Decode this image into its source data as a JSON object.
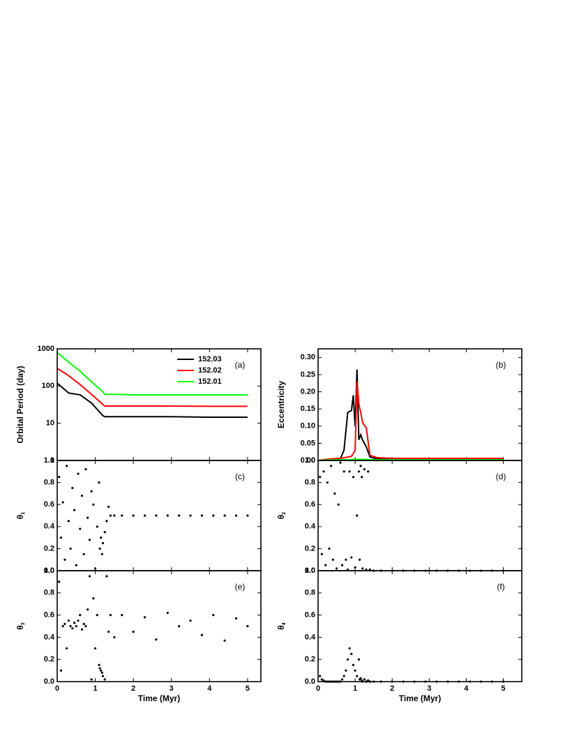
{
  "chart_data": [
    {
      "type": "line",
      "annotation": "(a)",
      "ylabel": "Orbital Period (day)",
      "ylog": true,
      "xlim": [
        0,
        5.35
      ],
      "xticks": [
        0,
        1,
        2,
        3,
        4,
        5
      ],
      "ylim": [
        1,
        1000
      ],
      "yticks": [
        1,
        10,
        100,
        1000
      ],
      "legend": "upper right",
      "x": [
        0,
        0.3,
        0.6,
        0.9,
        1.2,
        1.25,
        1.5,
        2,
        3,
        4,
        5
      ],
      "series": [
        {
          "name": "152.03",
          "color": "#000000",
          "values": [
            120,
            65,
            58,
            35,
            16,
            15,
            15,
            15,
            15,
            14.5,
            14.5
          ]
        },
        {
          "name": "152.02",
          "color": "#ff0000",
          "values": [
            300,
            190,
            110,
            60,
            32,
            29,
            29,
            29,
            29,
            28.5,
            28.5
          ]
        },
        {
          "name": "152.01",
          "color": "#00ff00",
          "values": [
            800,
            440,
            250,
            130,
            70,
            60,
            60,
            58,
            58,
            58,
            58
          ]
        }
      ]
    },
    {
      "type": "line",
      "annotation": "(b)",
      "ylabel": "Eccentricity",
      "xlim": [
        0,
        5.5
      ],
      "xticks": [
        0,
        1,
        2,
        3,
        4,
        5
      ],
      "ylim": [
        0,
        0.325
      ],
      "yticks": [
        {
          "value": 0,
          "label": "0.00"
        },
        {
          "value": 0.05,
          "label": "0.05"
        },
        {
          "value": 0.1,
          "label": "0.10"
        },
        {
          "value": 0.15,
          "label": "0.15"
        },
        {
          "value": 0.2,
          "label": "0.20"
        },
        {
          "value": 0.25,
          "label": "0.25"
        },
        {
          "value": 0.3,
          "label": "0.30"
        }
      ],
      "x": [
        0,
        0.2,
        0.4,
        0.6,
        0.7,
        0.8,
        0.9,
        0.95,
        1.0,
        1.05,
        1.1,
        1.15,
        1.2,
        1.3,
        1.4,
        1.6,
        2,
        3,
        4,
        5
      ],
      "series": [
        {
          "color": "#000000",
          "values": [
            0,
            0.002,
            0.003,
            0.005,
            0.03,
            0.14,
            0.145,
            0.19,
            0.1,
            0.265,
            0.06,
            0.075,
            0.06,
            0.04,
            0.01,
            0.004,
            0.004,
            0.004,
            0.004,
            0.004
          ]
        },
        {
          "color": "#ff0000",
          "values": [
            0,
            0.003,
            0.005,
            0.006,
            0.008,
            0.01,
            0.012,
            0.02,
            0.03,
            0.23,
            0.165,
            0.14,
            0.11,
            0.095,
            0.015,
            0.008,
            0.006,
            0.006,
            0.006,
            0.006
          ]
        },
        {
          "color": "#00ff00",
          "values": [
            0,
            0.001,
            0.002,
            0.002,
            0.002,
            0.002,
            0.002,
            0.003,
            0.003,
            0.003,
            0.003,
            0.003,
            0.003,
            0.003,
            0.002,
            0.002,
            0.002,
            0.002,
            0.002,
            0.002
          ]
        }
      ]
    },
    {
      "type": "scatter",
      "annotation": "(c)",
      "ylabel": "θ",
      "ylabel_sub": "1",
      "color": "#000000",
      "xlim": [
        0,
        5.35
      ],
      "xticks": [
        0,
        1,
        2,
        3,
        4,
        5
      ],
      "ylim": [
        0,
        1
      ],
      "yticks": [
        {
          "value": 0,
          "label": "0.0"
        },
        {
          "value": 0.2,
          "label": "0.2"
        },
        {
          "value": 0.4,
          "label": "0.4"
        },
        {
          "value": 0.6,
          "label": "0.6"
        },
        {
          "value": 0.8,
          "label": "0.8"
        },
        {
          "value": 1,
          "label": "1.0"
        }
      ],
      "x": [
        0.05,
        0.1,
        0.15,
        0.2,
        0.25,
        0.3,
        0.35,
        0.4,
        0.45,
        0.5,
        0.55,
        0.6,
        0.65,
        0.7,
        0.75,
        0.8,
        0.85,
        0.9,
        0.95,
        1.0,
        1.05,
        1.1,
        1.12,
        1.15,
        1.18,
        1.2,
        1.25,
        1.3,
        1.35,
        1.4,
        1.5,
        1.7,
        2.0,
        2.3,
        2.6,
        2.9,
        3.2,
        3.5,
        3.8,
        4.1,
        4.4,
        4.7,
        5.0
      ],
      "values": [
        0.85,
        0.3,
        0.62,
        0.1,
        0.95,
        0.45,
        0.2,
        0.75,
        0.55,
        0.05,
        0.88,
        0.38,
        0.68,
        0.15,
        0.92,
        0.48,
        0.28,
        0.72,
        0.6,
        0.02,
        0.4,
        0.8,
        0.2,
        0.3,
        0.15,
        0.25,
        0.35,
        0.45,
        0.58,
        0.5,
        0.5,
        0.5,
        0.5,
        0.5,
        0.5,
        0.5,
        0.5,
        0.5,
        0.5,
        0.5,
        0.5,
        0.5,
        0.5
      ]
    },
    {
      "type": "scatter",
      "annotation": "(d)",
      "ylabel": "θ",
      "ylabel_sub": "2",
      "color": "#000000",
      "xlim": [
        0,
        5.5
      ],
      "xticks": [
        0,
        1,
        2,
        3,
        4,
        5
      ],
      "ylim": [
        0,
        1
      ],
      "yticks": [
        {
          "value": 0,
          "label": "0.0"
        },
        {
          "value": 0.2,
          "label": "0.2"
        },
        {
          "value": 0.4,
          "label": "0.4"
        },
        {
          "value": 0.6,
          "label": "0.6"
        },
        {
          "value": 0.8,
          "label": "0.8"
        },
        {
          "value": 1,
          "label": "1.0"
        }
      ],
      "x": [
        0.05,
        0.1,
        0.15,
        0.2,
        0.25,
        0.3,
        0.35,
        0.4,
        0.45,
        0.5,
        0.55,
        0.6,
        0.65,
        0.7,
        0.75,
        0.8,
        0.85,
        0.9,
        0.95,
        1.0,
        1.05,
        1.1,
        1.12,
        1.15,
        1.18,
        1.2,
        1.25,
        1.3,
        1.35,
        1.4,
        1.5,
        1.7,
        2.0,
        2.3,
        2.6,
        2.9,
        3.2,
        3.5,
        3.8,
        4.1,
        4.4,
        4.7,
        5.0
      ],
      "values": [
        0.85,
        0.15,
        0.9,
        0.05,
        0.8,
        0.2,
        0.95,
        0.1,
        0.7,
        0.02,
        0.6,
        0.98,
        0.05,
        0.9,
        0.1,
        0.01,
        0.9,
        0.12,
        0.85,
        0.03,
        0.5,
        0.9,
        0.1,
        0.95,
        0.85,
        0.02,
        0.92,
        0.01,
        0.9,
        0.01,
        0,
        0,
        0,
        0,
        0,
        0,
        0,
        0,
        0,
        0,
        0,
        0,
        0
      ]
    },
    {
      "type": "scatter",
      "annotation": "(e)",
      "ylabel": "θ",
      "ylabel_sub": "3",
      "xlabel": "Time (Myr)",
      "color": "#000000",
      "xlim": [
        0,
        5.35
      ],
      "xticks": [
        0,
        1,
        2,
        3,
        4,
        5
      ],
      "ylim": [
        0,
        1
      ],
      "yticks": [
        {
          "value": 0,
          "label": "0.0"
        },
        {
          "value": 0.2,
          "label": "0.2"
        },
        {
          "value": 0.4,
          "label": "0.4"
        },
        {
          "value": 0.6,
          "label": "0.6"
        },
        {
          "value": 0.8,
          "label": "0.8"
        },
        {
          "value": 1,
          "label": "1.0"
        }
      ],
      "x": [
        0.05,
        0.1,
        0.15,
        0.2,
        0.25,
        0.3,
        0.35,
        0.4,
        0.45,
        0.5,
        0.55,
        0.6,
        0.65,
        0.7,
        0.75,
        0.8,
        0.85,
        0.9,
        0.95,
        1.0,
        1.05,
        1.1,
        1.12,
        1.15,
        1.18,
        1.2,
        1.25,
        1.3,
        1.35,
        1.4,
        1.5,
        1.7,
        2.0,
        2.3,
        2.6,
        2.9,
        3.2,
        3.5,
        3.8,
        4.1,
        4.4,
        4.7,
        5.0
      ],
      "values": [
        0.9,
        0.1,
        0.5,
        0.52,
        0.3,
        0.55,
        0.5,
        0.48,
        0.53,
        0.5,
        0.55,
        0.6,
        0.47,
        0.52,
        0.5,
        0.65,
        0.95,
        0.02,
        0.75,
        0.3,
        0.6,
        0.15,
        0.12,
        0.1,
        0.08,
        0.05,
        0.02,
        0.95,
        0.45,
        0.6,
        0.4,
        0.6,
        0.45,
        0.58,
        0.38,
        0.62,
        0.5,
        0.55,
        0.42,
        0.6,
        0.37,
        0.57,
        0.5
      ]
    },
    {
      "type": "scatter",
      "annotation": "(f)",
      "ylabel": "θ",
      "ylabel_sub": "4",
      "xlabel": "Time (Myr)",
      "color": "#000000",
      "xlim": [
        0,
        5.5
      ],
      "xticks": [
        0,
        1,
        2,
        3,
        4,
        5
      ],
      "ylim": [
        0,
        1
      ],
      "yticks": [
        {
          "value": 0,
          "label": "0.0"
        },
        {
          "value": 0.2,
          "label": "0.2"
        },
        {
          "value": 0.4,
          "label": "0.4"
        },
        {
          "value": 0.6,
          "label": "0.6"
        },
        {
          "value": 0.8,
          "label": "0.8"
        },
        {
          "value": 1,
          "label": "1.0"
        }
      ],
      "x": [
        0.05,
        0.1,
        0.15,
        0.2,
        0.25,
        0.3,
        0.35,
        0.4,
        0.45,
        0.5,
        0.55,
        0.6,
        0.65,
        0.7,
        0.75,
        0.8,
        0.85,
        0.9,
        0.95,
        1.0,
        1.05,
        1.1,
        1.12,
        1.15,
        1.18,
        1.2,
        1.25,
        1.3,
        1.35,
        1.4,
        1.5,
        1.7,
        2.0,
        2.3,
        2.6,
        2.9,
        3.2,
        3.5,
        3.8,
        4.1,
        4.4,
        4.7,
        5.0
      ],
      "values": [
        0.05,
        0.02,
        0.01,
        0,
        0,
        0,
        0,
        0,
        0,
        0,
        0,
        0,
        0.02,
        0.05,
        0.1,
        0.2,
        0.3,
        0.25,
        0.15,
        0.1,
        0.05,
        0.2,
        0.02,
        0.03,
        0.01,
        0,
        0.02,
        0,
        0.01,
        0,
        0,
        0,
        0,
        0,
        0,
        0,
        0,
        0,
        0,
        0,
        0,
        0,
        0
      ]
    }
  ]
}
